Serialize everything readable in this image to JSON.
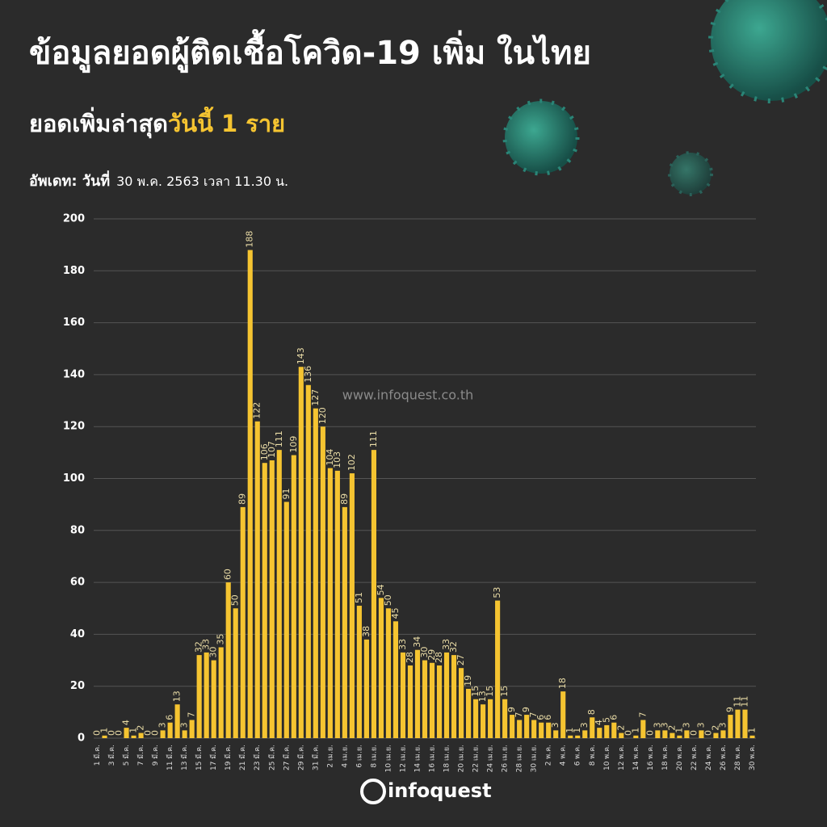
{
  "chart_data": {
    "type": "bar",
    "title": "ข้อมูลยอดผู้ติดเชื้อโควิด-19 เพิ่ม ในไทย",
    "subtitle": "ยอดเพิ่มล่าสุด",
    "subtitle_highlight": "วันนี้ 1 ราย",
    "update_label": "อัพเดท: วันที่",
    "update_time": "30 พ.ค. 2563 เวลา 11.30 น.",
    "watermark": "www.infoquest.co.th",
    "logo": "infoquest",
    "color": "#f5c431",
    "grid": true,
    "ylim": [
      0,
      200
    ],
    "yticks": [
      0,
      20,
      40,
      60,
      80,
      100,
      120,
      140,
      160,
      180,
      200
    ],
    "categories": [
      "1 มี.ค.",
      null,
      "3 มี.ค.",
      null,
      "5 มี.ค.",
      null,
      "7 มี.ค.",
      null,
      "9 มี.ค.",
      null,
      "11 มี.ค.",
      null,
      "13 มี.ค.",
      null,
      "15 มี.ค.",
      null,
      "17 มี.ค.",
      null,
      "19 มี.ค.",
      null,
      "21 มี.ค.",
      null,
      "23 มี.ค.",
      null,
      "25 มี.ค.",
      null,
      "27 มี.ค.",
      null,
      "29 มี.ค.",
      null,
      "31 มี.ค.",
      null,
      "2 เม.ย.",
      null,
      "4 เม.ย.",
      null,
      "6 เม.ย.",
      null,
      "8 เม.ย.",
      null,
      "10 เม.ย.",
      null,
      "12 เม.ย.",
      null,
      "14 เม.ย.",
      null,
      "16 เม.ย.",
      null,
      "18 เม.ย.",
      null,
      "20 เม.ย.",
      null,
      "22 เม.ย.",
      null,
      "24 เม.ย.",
      null,
      "26 เม.ย.",
      null,
      "28 เม.ย.",
      null,
      "30 เม.ย.",
      null,
      "2 พ.ค.",
      null,
      "4 พ.ค.",
      null,
      "6 พ.ค.",
      null,
      "8 พ.ค.",
      null,
      "10 พ.ค.",
      null,
      "12 พ.ค.",
      null,
      "14 พ.ค.",
      null,
      "16 พ.ค.",
      null,
      "18 พ.ค.",
      null,
      "20 พ.ค.",
      null,
      "22 พ.ค.",
      null,
      "24 พ.ค.",
      null,
      "26 พ.ค.",
      null,
      "28 พ.ค.",
      null,
      "30 พ.ค."
    ],
    "values": [
      0,
      1,
      0,
      0,
      4,
      1,
      2,
      0,
      0,
      3,
      6,
      13,
      3,
      7,
      32,
      33,
      30,
      35,
      60,
      50,
      89,
      188,
      122,
      106,
      107,
      111,
      91,
      109,
      143,
      136,
      127,
      120,
      104,
      103,
      89,
      102,
      51,
      38,
      111,
      54,
      50,
      45,
      33,
      28,
      34,
      30,
      29,
      28,
      33,
      32,
      27,
      19,
      15,
      13,
      15,
      53,
      15,
      9,
      7,
      9,
      7,
      6,
      6,
      3,
      18,
      1,
      1,
      3,
      8,
      4,
      5,
      6,
      2,
      0,
      1,
      7,
      0,
      3,
      3,
      2,
      1,
      3,
      0,
      3,
      0,
      2,
      3,
      9,
      11,
      11,
      1
    ]
  }
}
